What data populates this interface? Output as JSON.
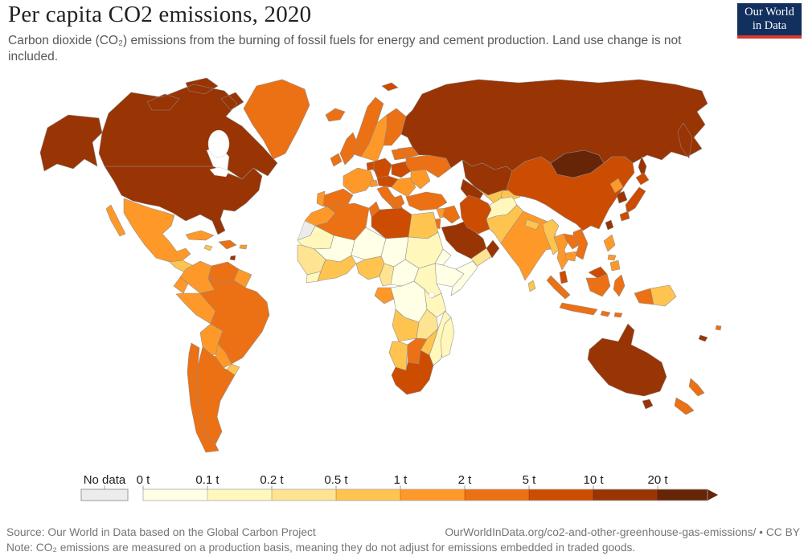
{
  "header": {
    "title": "Per capita CO2 emissions, 2020",
    "subtitle": "Carbon dioxide (CO₂) emissions from the burning of fossil fuels for energy and cement production. Land use change is not included."
  },
  "logo": {
    "line1": "Our World",
    "line2": "in Data",
    "bg_color": "#12305e",
    "bar_color": "#d9382d",
    "text_color": "#ffffff"
  },
  "footer": {
    "source": "Source: Our World in Data based on the Global Carbon Project",
    "link": "OurWorldInData.org/co2-and-other-greenhouse-gas-emissions/ • CC BY",
    "note": "Note: CO₂ emissions are measured on a production basis, meaning they do not adjust for emissions embedded in traded goods."
  },
  "chart_data": {
    "type": "choropleth",
    "title": "Per capita CO2 emissions, 2020",
    "year": 2020,
    "unit": "tonnes of CO2 per person",
    "legend_position": "bottom",
    "no_data": {
      "label": "No data",
      "color": "#ececec"
    },
    "tick_labels": [
      "0 t",
      "0.1 t",
      "0.2 t",
      "0.5 t",
      "1 t",
      "2 t",
      "5 t",
      "10 t",
      "20 t"
    ],
    "legend_bands": [
      {
        "label": "0–0.1 t",
        "color": "#ffffe5"
      },
      {
        "label": "0.1–0.2 t",
        "color": "#fff7bc"
      },
      {
        "label": "0.2–0.5 t",
        "color": "#fee391"
      },
      {
        "label": "0.5–1 t",
        "color": "#fec44f"
      },
      {
        "label": "1–2 t",
        "color": "#fe9929"
      },
      {
        "label": "2–5 t",
        "color": "#ec7014"
      },
      {
        "label": "5–10 t",
        "color": "#cc4c02"
      },
      {
        "label": "10–20 t",
        "color": "#993404"
      },
      {
        "label": "20+ t",
        "color": "#662506"
      }
    ],
    "regions": [
      {
        "id": "united-states",
        "name": "United States",
        "band": 7
      },
      {
        "id": "canada",
        "name": "Canada",
        "band": 7
      },
      {
        "id": "greenland",
        "name": "Greenland",
        "band": 5
      },
      {
        "id": "mexico",
        "name": "Mexico",
        "band": 4
      },
      {
        "id": "central-america-north",
        "name": "Guatemala, Honduras & Nicaragua",
        "band": 3
      },
      {
        "id": "central-america-south",
        "name": "Costa Rica & Panama",
        "band": 4
      },
      {
        "id": "cuba",
        "name": "Cuba",
        "band": 4
      },
      {
        "id": "jamaica",
        "name": "Jamaica",
        "band": 3
      },
      {
        "id": "hispaniola",
        "name": "Haiti & Dominican Republic",
        "band": 5
      },
      {
        "id": "puerto-rico",
        "name": "Puerto Rico",
        "band": 4
      },
      {
        "id": "trinidad-tobago",
        "name": "Trinidad and Tobago",
        "band": 7
      },
      {
        "id": "colombia",
        "name": "Colombia",
        "band": 4
      },
      {
        "id": "venezuela",
        "name": "Venezuela",
        "band": 5
      },
      {
        "id": "guyana-suriname",
        "name": "Guyana & Suriname",
        "band": 4
      },
      {
        "id": "ecuador",
        "name": "Ecuador",
        "band": 4
      },
      {
        "id": "peru",
        "name": "Peru",
        "band": 4
      },
      {
        "id": "brazil",
        "name": "Brazil",
        "band": 5
      },
      {
        "id": "bolivia",
        "name": "Bolivia",
        "band": 4
      },
      {
        "id": "paraguay",
        "name": "Paraguay",
        "band": 4
      },
      {
        "id": "uruguay",
        "name": "Uruguay",
        "band": 3
      },
      {
        "id": "argentina",
        "name": "Argentina",
        "band": 5
      },
      {
        "id": "chile",
        "name": "Chile",
        "band": 5
      },
      {
        "id": "iceland",
        "name": "Iceland",
        "band": 5
      },
      {
        "id": "svalbard",
        "name": "Svalbard",
        "band": 6
      },
      {
        "id": "norway",
        "name": "Norway",
        "band": 5
      },
      {
        "id": "sweden",
        "name": "Sweden",
        "band": 4
      },
      {
        "id": "finland",
        "name": "Finland",
        "band": 5
      },
      {
        "id": "denmark",
        "name": "Denmark",
        "band": 6
      },
      {
        "id": "united-kingdom",
        "name": "United Kingdom",
        "band": 5
      },
      {
        "id": "ireland",
        "name": "Ireland",
        "band": 5
      },
      {
        "id": "france",
        "name": "France",
        "band": 4
      },
      {
        "id": "spain",
        "name": "Spain",
        "band": 5
      },
      {
        "id": "portugal",
        "name": "Portugal",
        "band": 4
      },
      {
        "id": "germany",
        "name": "Germany",
        "band": 6
      },
      {
        "id": "benelux",
        "name": "Belgium & Netherlands",
        "band": 6
      },
      {
        "id": "poland",
        "name": "Poland",
        "band": 6
      },
      {
        "id": "czechia-austria",
        "name": "Czechia & Austria",
        "band": 6
      },
      {
        "id": "switzerland",
        "name": "Switzerland",
        "band": 4
      },
      {
        "id": "italy",
        "name": "Italy",
        "band": 5
      },
      {
        "id": "balkans",
        "name": "Balkans",
        "band": 4
      },
      {
        "id": "greece",
        "name": "Greece",
        "band": 5
      },
      {
        "id": "romania-bulgaria",
        "name": "Romania & Bulgaria",
        "band": 4
      },
      {
        "id": "ukraine",
        "name": "Ukraine",
        "band": 5
      },
      {
        "id": "belarus",
        "name": "Belarus",
        "band": 5
      },
      {
        "id": "baltics",
        "name": "Baltic states",
        "band": 5
      },
      {
        "id": "russia",
        "name": "Russia",
        "band": 7
      },
      {
        "id": "kazakhstan",
        "name": "Kazakhstan",
        "band": 7
      },
      {
        "id": "turkmenistan",
        "name": "Turkmenistan",
        "band": 7
      },
      {
        "id": "uzbekistan",
        "name": "Uzbekistan",
        "band": 3
      },
      {
        "id": "kyrgyzstan-tajikistan",
        "name": "Kyrgyzstan & Tajikistan",
        "band": 3
      },
      {
        "id": "turkey",
        "name": "Turkey",
        "band": 5
      },
      {
        "id": "syria",
        "name": "Syria",
        "band": 4
      },
      {
        "id": "iraq",
        "name": "Iraq",
        "band": 5
      },
      {
        "id": "jordan-israel",
        "name": "Jordan & Israel",
        "band": 5
      },
      {
        "id": "saudi-arabia",
        "name": "Saudi Arabia",
        "band": 7
      },
      {
        "id": "yemen",
        "name": "Yemen",
        "band": 2
      },
      {
        "id": "oman",
        "name": "Oman",
        "band": 7
      },
      {
        "id": "iran",
        "name": "Iran",
        "band": 6
      },
      {
        "id": "afghanistan",
        "name": "Afghanistan",
        "band": 1
      },
      {
        "id": "pakistan",
        "name": "Pakistan",
        "band": 3
      },
      {
        "id": "india",
        "name": "India",
        "band": 4
      },
      {
        "id": "nepal",
        "name": "Nepal",
        "band": 3
      },
      {
        "id": "bangladesh",
        "name": "Bangladesh",
        "band": 3
      },
      {
        "id": "sri-lanka",
        "name": "Sri Lanka",
        "band": 3
      },
      {
        "id": "myanmar",
        "name": "Myanmar",
        "band": 3
      },
      {
        "id": "china",
        "name": "China",
        "band": 6
      },
      {
        "id": "mongolia",
        "name": "Mongolia",
        "band": 8
      },
      {
        "id": "north-korea",
        "name": "North Korea",
        "band": 4
      },
      {
        "id": "south-korea",
        "name": "South Korea",
        "band": 7
      },
      {
        "id": "japan",
        "name": "Japan",
        "band": 6
      },
      {
        "id": "taiwan",
        "name": "Taiwan",
        "band": 7
      },
      {
        "id": "thailand",
        "name": "Thailand",
        "band": 4
      },
      {
        "id": "laos",
        "name": "Laos",
        "band": 5
      },
      {
        "id": "vietnam",
        "name": "Vietnam",
        "band": 5
      },
      {
        "id": "cambodia",
        "name": "Cambodia",
        "band": 4
      },
      {
        "id": "malaysia",
        "name": "Malaysia",
        "band": 6
      },
      {
        "id": "indonesia",
        "name": "Indonesia",
        "band": 5
      },
      {
        "id": "papua-new-guinea",
        "name": "Papua New Guinea",
        "band": 3
      },
      {
        "id": "philippines",
        "name": "Philippines",
        "band": 4
      },
      {
        "id": "australia",
        "name": "Australia",
        "band": 7
      },
      {
        "id": "new-zealand",
        "name": "New Zealand",
        "band": 5
      },
      {
        "id": "new-caledonia",
        "name": "New Caledonia",
        "band": 7
      },
      {
        "id": "fiji",
        "name": "Fiji",
        "band": 5
      },
      {
        "id": "morocco",
        "name": "Morocco",
        "band": 4
      },
      {
        "id": "western-sahara",
        "name": "Western Sahara",
        "band": -1
      },
      {
        "id": "algeria",
        "name": "Algeria",
        "band": 5
      },
      {
        "id": "tunisia",
        "name": "Tunisia",
        "band": 5
      },
      {
        "id": "libya",
        "name": "Libya",
        "band": 6
      },
      {
        "id": "egypt",
        "name": "Egypt",
        "band": 3
      },
      {
        "id": "mauritania",
        "name": "Mauritania",
        "band": 1
      },
      {
        "id": "mali",
        "name": "Mali",
        "band": 0
      },
      {
        "id": "niger",
        "name": "Niger",
        "band": 0
      },
      {
        "id": "chad",
        "name": "Chad",
        "band": 0
      },
      {
        "id": "sudan",
        "name": "Sudan",
        "band": 1
      },
      {
        "id": "eritrea",
        "name": "Eritrea",
        "band": 0
      },
      {
        "id": "ethiopia",
        "name": "Ethiopia",
        "band": 0
      },
      {
        "id": "somalia",
        "name": "Somalia",
        "band": 0
      },
      {
        "id": "senegal-guinea",
        "name": "Senegal & Guinea",
        "band": 2
      },
      {
        "id": "sierra-leone-liberia",
        "name": "Sierra Leone & Liberia",
        "band": 1
      },
      {
        "id": "ivory-coast-ghana",
        "name": "Côte d'Ivoire & Ghana",
        "band": 3
      },
      {
        "id": "nigeria",
        "name": "Nigeria",
        "band": 3
      },
      {
        "id": "cameroon",
        "name": "Cameroon",
        "band": 2
      },
      {
        "id": "central-african-republic",
        "name": "Central African Republic",
        "band": 0
      },
      {
        "id": "gabon-congo",
        "name": "Gabon & Congo",
        "band": 4
      },
      {
        "id": "dr-congo",
        "name": "Democratic Republic of Congo",
        "band": 0
      },
      {
        "id": "uganda-kenya",
        "name": "Uganda & Kenya",
        "band": 1
      },
      {
        "id": "tanzania",
        "name": "Tanzania",
        "band": 1
      },
      {
        "id": "angola",
        "name": "Angola",
        "band": 3
      },
      {
        "id": "zambia",
        "name": "Zambia",
        "band": 2
      },
      {
        "id": "mozambique",
        "name": "Mozambique",
        "band": 1
      },
      {
        "id": "zimbabwe",
        "name": "Zimbabwe",
        "band": 3
      },
      {
        "id": "namibia",
        "name": "Namibia",
        "band": 3
      },
      {
        "id": "botswana",
        "name": "Botswana",
        "band": 5
      },
      {
        "id": "south-africa",
        "name": "South Africa",
        "band": 6
      },
      {
        "id": "madagascar",
        "name": "Madagascar",
        "band": 1
      }
    ]
  }
}
